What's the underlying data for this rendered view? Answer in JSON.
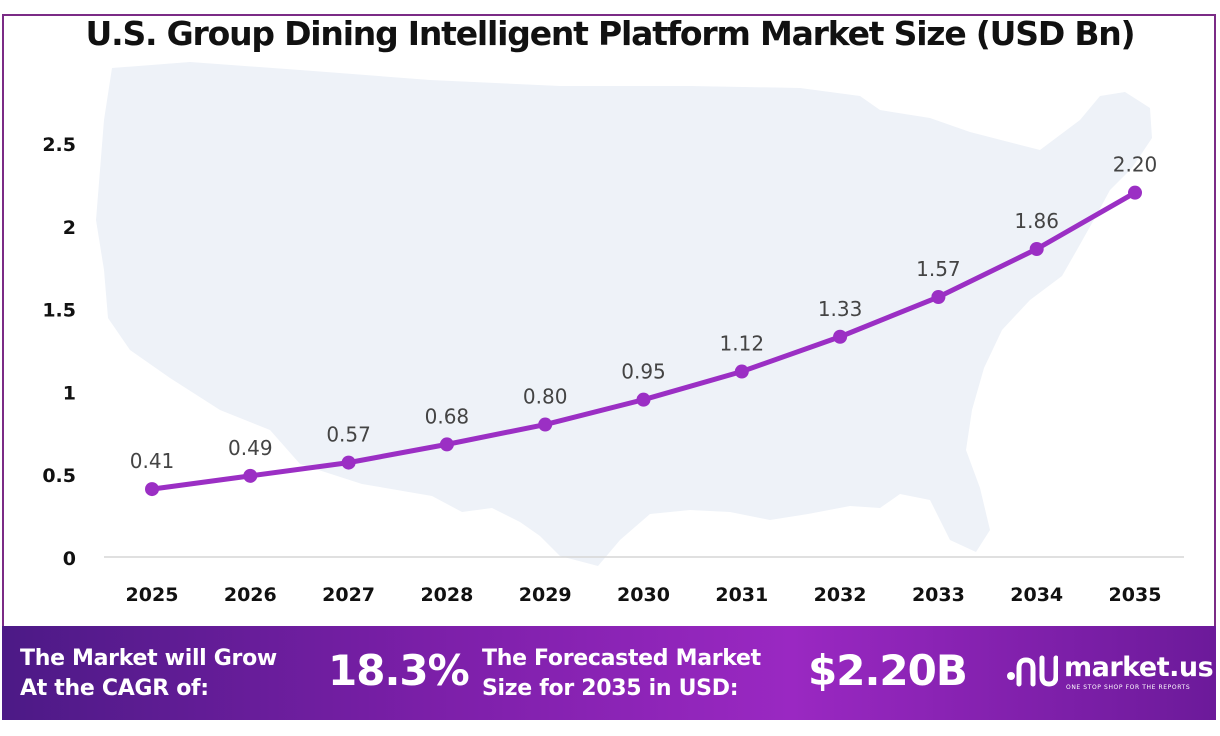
{
  "chart_data": {
    "type": "line",
    "title": "U.S. Group Dining Intelligent Platform Market Size (USD Bn)",
    "categories": [
      "2025",
      "2026",
      "2027",
      "2028",
      "2029",
      "2030",
      "2031",
      "2032",
      "2033",
      "2034",
      "2035"
    ],
    "values": [
      0.41,
      0.49,
      0.57,
      0.68,
      0.8,
      0.95,
      1.12,
      1.33,
      1.57,
      1.86,
      2.2
    ],
    "data_labels": [
      "0.41",
      "0.49",
      "0.57",
      "0.68",
      "0.80",
      "0.95",
      "1.12",
      "1.33",
      "1.57",
      "1.86",
      "2.20"
    ],
    "y_ticks": [
      0,
      0.5,
      1,
      1.5,
      2,
      2.5
    ],
    "y_tick_labels": [
      "0",
      "0.5",
      "1",
      "1.5",
      "2",
      "2.5"
    ],
    "ylim": [
      0,
      2.5
    ],
    "grid": false,
    "legend": "none",
    "line_color": "#9b2fc4"
  },
  "banner": {
    "cagr_label": "The Market will Grow At the CAGR of:",
    "cagr_value": "18.3%",
    "forecast_label": "The Forecasted Market Size for 2035 in USD:",
    "forecast_value": "$2.20B"
  },
  "logo": {
    "name": "market.us",
    "tagline": "ONE STOP SHOP FOR THE REPORTS"
  }
}
